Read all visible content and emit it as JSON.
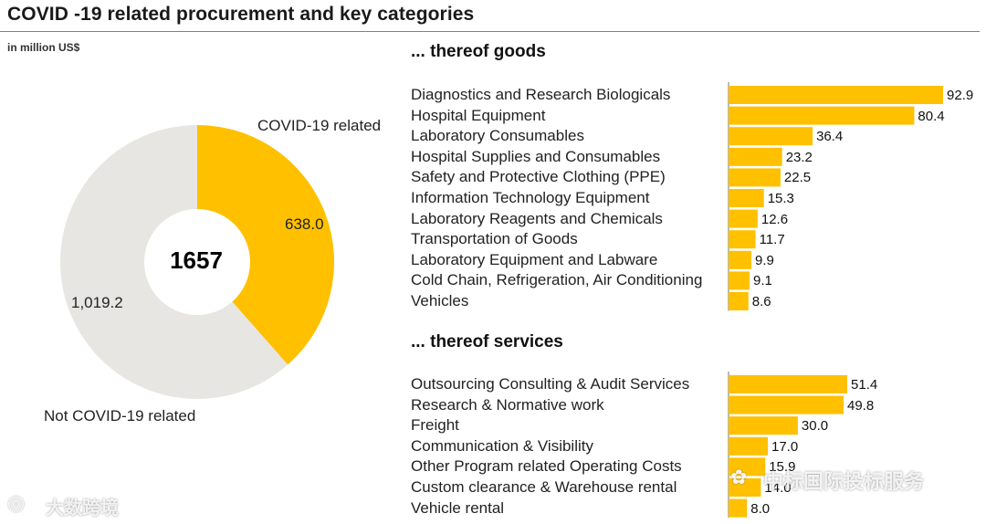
{
  "header": {
    "title": "COVID -19 related procurement and key categories",
    "unit": "in million US$"
  },
  "chart_data": [
    {
      "type": "pie",
      "variant": "donut",
      "center_label": "1657",
      "slices": [
        {
          "name": "COVID-19 related",
          "value": 638.0,
          "value_label": "638.0",
          "color": "#ffc000"
        },
        {
          "name": "Not COVID-19 related",
          "value": 1019.2,
          "value_label": "1,019.2",
          "color": "#e7e6e3"
        }
      ]
    },
    {
      "type": "bar",
      "orientation": "horizontal",
      "title": "... thereof goods",
      "categories": [
        "Diagnostics and Research Biologicals",
        "Hospital Equipment",
        "Laboratory Consumables",
        "Hospital Supplies and Consumables",
        "Safety and Protective Clothing (PPE)",
        "Information Technology Equipment",
        "Laboratory Reagents and Chemicals",
        "Transportation of Goods",
        "Laboratory Equipment and Labware",
        "Cold Chain, Refrigeration, Air Conditioning",
        "Vehicles"
      ],
      "values": [
        92.9,
        80.4,
        36.4,
        23.2,
        22.5,
        15.3,
        12.6,
        11.7,
        9.9,
        9.1,
        8.6
      ],
      "value_labels": [
        "92.9",
        "80.4",
        "36.4",
        "23.2",
        "22.5",
        "15.3",
        "12.6",
        "11.7",
        "9.9",
        "9.1",
        "8.6"
      ],
      "color": "#ffc000"
    },
    {
      "type": "bar",
      "orientation": "horizontal",
      "title": "... thereof services",
      "categories": [
        "Outsourcing Consulting & Audit Services",
        "Research & Normative work",
        "Freight",
        "Communication & Visibility",
        "Other Program related Operating Costs",
        "Custom clearance & Warehouse rental",
        "Vehicle rental"
      ],
      "values": [
        51.4,
        49.8,
        30.0,
        17.0,
        15.9,
        14.0,
        8.0
      ],
      "value_labels": [
        "51.4",
        "49.8",
        "30.0",
        "17.0",
        "15.9",
        "14.0",
        "8.0"
      ],
      "color": "#ffc000"
    }
  ],
  "watermarks": {
    "left": "大数跨境",
    "right": "中标国际投标服务"
  }
}
